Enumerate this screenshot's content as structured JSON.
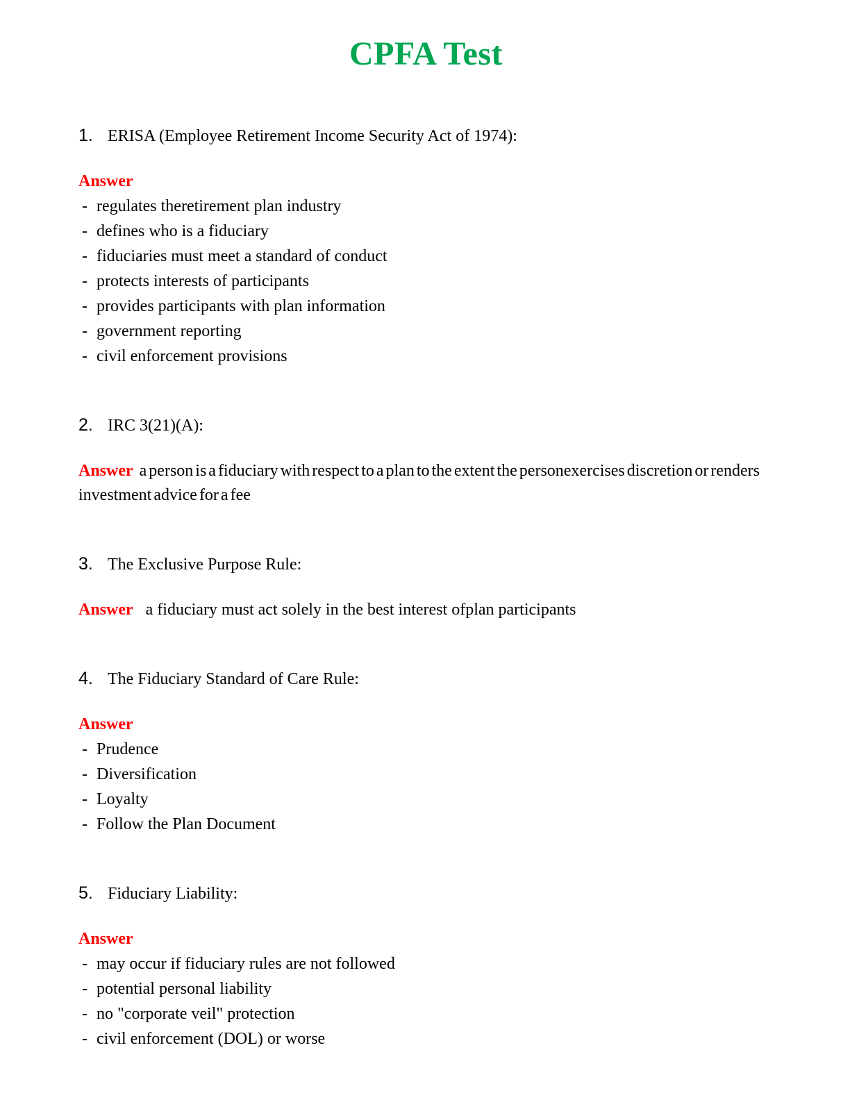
{
  "title": "CPFA Test",
  "colors": {
    "title": "#00A651",
    "answer": "#FF0000",
    "body": "#000000"
  },
  "answer_label": "Answer",
  "bullet": "-",
  "questions": [
    {
      "number": "1.",
      "text": "ERISA (Employee Retirement Income Security Act of 1974):",
      "answer_type": "list",
      "items": [
        "regulates theretirement plan industry",
        "defines who is a fiduciary",
        "fiduciaries must meet a standard of conduct",
        "protects interests of participants",
        "provides participants with plan information",
        "government reporting",
        "civil enforcement provisions"
      ]
    },
    {
      "number": "2.",
      "text": "IRC 3(21)(A):",
      "answer_type": "inline",
      "answer_text": "a person is a fiduciary with respect to a plan to the extent the personexercises discretion or renders investment advice for a fee"
    },
    {
      "number": "3.",
      "text": "The Exclusive Purpose Rule:",
      "answer_type": "inline",
      "answer_text": "a fiduciary must act solely in the best interest ofplan participants"
    },
    {
      "number": "4.",
      "text": "The Fiduciary Standard of Care Rule:",
      "answer_type": "list",
      "items": [
        "Prudence",
        "Diversification",
        "Loyalty",
        "Follow the Plan Document"
      ]
    },
    {
      "number": "5.",
      "text": "Fiduciary Liability:",
      "answer_type": "list",
      "items": [
        "may occur if fiduciary rules are not followed",
        "potential personal liability",
        "no \"corporate veil\" protection",
        "civil enforcement (DOL) or worse"
      ]
    }
  ]
}
